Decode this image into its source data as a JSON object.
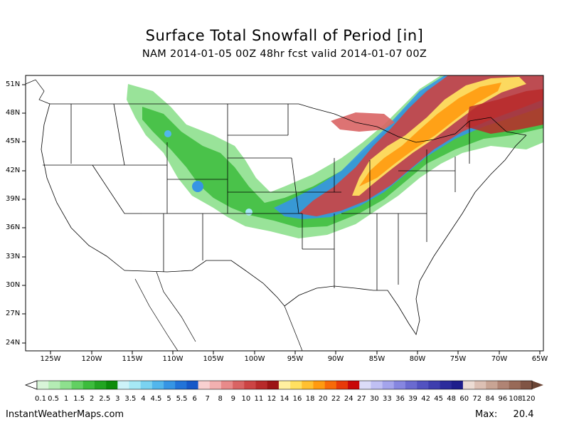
{
  "header": {
    "title": "Surface Total Snowfall of Period [in]",
    "subtitle": "NAM 2014-01-05 00Z 48hr fcst valid 2014-01-07 00Z"
  },
  "map": {
    "lat_labels": [
      "51N",
      "48N",
      "45N",
      "42N",
      "39N",
      "36N",
      "33N",
      "30N",
      "27N",
      "24N"
    ],
    "lon_labels": [
      "125W",
      "120W",
      "115W",
      "110W",
      "105W",
      "100W",
      "95W",
      "90W",
      "85W",
      "80W",
      "75W",
      "70W",
      "65W"
    ]
  },
  "colorbar": {
    "labels": [
      "0.1",
      "0.5",
      "1",
      "1.5",
      "2",
      "2.5",
      "3",
      "3.5",
      "4",
      "4.5",
      "5",
      "5.5",
      "6",
      "7",
      "8",
      "9",
      "10",
      "11",
      "12",
      "14",
      "16",
      "18",
      "20",
      "22",
      "24",
      "27",
      "30",
      "33",
      "36",
      "39",
      "42",
      "45",
      "48",
      "60",
      "72",
      "84",
      "96",
      "108",
      "120"
    ],
    "colors": [
      "#d8f5d8",
      "#b4ecb4",
      "#8ee08e",
      "#62d062",
      "#3cbc3c",
      "#22a522",
      "#0c8c0c",
      "#cdf3f9",
      "#a6e8f5",
      "#7ad2f1",
      "#52b6ec",
      "#3695e4",
      "#2273d8",
      "#1658c8",
      "#f8d0d0",
      "#f2b0b0",
      "#e88a8a",
      "#d96464",
      "#cc4444",
      "#b82a2a",
      "#9c1414",
      "#fff0a0",
      "#ffe060",
      "#ffc030",
      "#ff9a10",
      "#f86a08",
      "#e83a08",
      "#c80808",
      "#dcdcf8",
      "#c0c0f4",
      "#a4a4ec",
      "#8686e0",
      "#6a6ad0",
      "#5252c0",
      "#3e3eae",
      "#2c2c9c",
      "#1e1e8c",
      "#ecdcd4",
      "#dcc0b4",
      "#c8a494",
      "#b08474",
      "#986a58",
      "#805444"
    ]
  },
  "footer": {
    "credit": "InstantWeatherMaps.com",
    "max_label": "Max:",
    "max_value": "20.4"
  }
}
